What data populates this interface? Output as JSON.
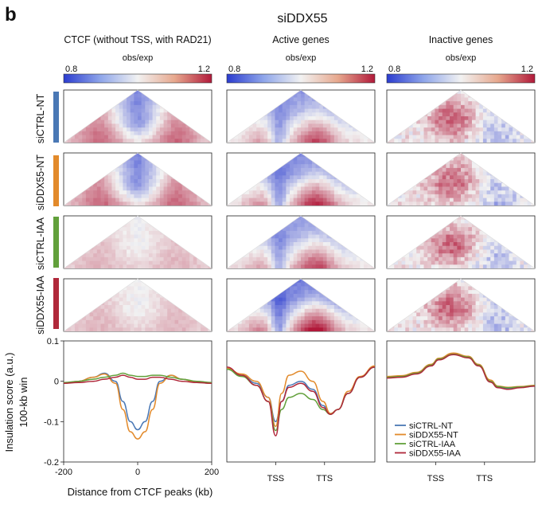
{
  "figure": {
    "panel_label": "b",
    "title": "siDDX55",
    "colorbar_label": "obs/exp",
    "colorbar_min": "0.8",
    "colorbar_max": "1.2",
    "columns": [
      {
        "title": "CTCF (without TSS, with RAD21)"
      },
      {
        "title": "Active genes"
      },
      {
        "title": "Inactive genes"
      }
    ],
    "rows": [
      {
        "label": "siCTRL-NT",
        "color": "#4a78b5"
      },
      {
        "label": "siDDX55-NT",
        "color": "#e28a2b"
      },
      {
        "label": "siCTRL-IAA",
        "color": "#62a03b"
      },
      {
        "label": "siDDX55-IAA",
        "color": "#b0283a"
      }
    ],
    "colormap": {
      "low": "#2b3ccf",
      "mid": "#f2f2f2",
      "high": "#b1193a"
    }
  },
  "chart_data": {
    "type": "line",
    "ylabel": "Insulation score (a.u.)",
    "ylabel2": "100-kb win",
    "xlabel": "Distance from CTCF peaks (kb)",
    "ylim": [
      -0.2,
      0.1
    ],
    "yticks": [
      "0.1",
      "0",
      "-0.1",
      "-0.2"
    ],
    "panels": [
      {
        "xticks": [
          "-200",
          "0",
          "200"
        ],
        "x": [
          -200,
          -160,
          -120,
          -90,
          -60,
          -40,
          -20,
          0,
          20,
          40,
          60,
          90,
          120,
          160,
          200
        ],
        "series": [
          {
            "name": "siCTRL-NT",
            "color": "#4a78b5",
            "values": [
              -0.005,
              0.0,
              0.01,
              0.02,
              0.0,
              -0.05,
              -0.1,
              -0.12,
              -0.1,
              -0.05,
              0.0,
              0.015,
              0.005,
              -0.003,
              -0.005
            ]
          },
          {
            "name": "siDDX55-NT",
            "color": "#e28a2b",
            "values": [
              -0.005,
              0.0,
              0.01,
              0.018,
              -0.005,
              -0.07,
              -0.125,
              -0.143,
              -0.125,
              -0.07,
              -0.005,
              0.015,
              0.005,
              -0.003,
              -0.005
            ]
          },
          {
            "name": "siCTRL-IAA",
            "color": "#62a03b",
            "values": [
              -0.003,
              0.0,
              0.005,
              0.01,
              0.015,
              0.02,
              0.015,
              0.012,
              0.012,
              0.015,
              0.015,
              0.01,
              0.005,
              0.0,
              -0.003
            ]
          },
          {
            "name": "siDDX55-IAA",
            "color": "#b0283a",
            "values": [
              -0.005,
              -0.003,
              0.0,
              0.005,
              0.01,
              0.015,
              0.01,
              0.005,
              0.005,
              0.01,
              0.01,
              0.005,
              0.0,
              -0.003,
              -0.005
            ]
          }
        ]
      },
      {
        "xticks": [
          "TSS",
          "TTS"
        ],
        "x": [
          0,
          0.1,
          0.2,
          0.28,
          0.33,
          0.37,
          0.42,
          0.5,
          0.58,
          0.65,
          0.7,
          0.75,
          0.82,
          0.9,
          1.0
        ],
        "series": [
          {
            "name": "siCTRL-NT",
            "color": "#4a78b5",
            "values": [
              0.03,
              0.015,
              -0.005,
              -0.04,
              -0.1,
              -0.05,
              -0.01,
              0.0,
              -0.02,
              -0.06,
              -0.08,
              -0.07,
              -0.03,
              0.01,
              0.035
            ]
          },
          {
            "name": "siDDX55-NT",
            "color": "#e28a2b",
            "values": [
              0.032,
              0.018,
              0.0,
              -0.04,
              -0.112,
              -0.03,
              0.015,
              0.025,
              0.0,
              -0.05,
              -0.08,
              -0.07,
              -0.025,
              0.012,
              0.038
            ]
          },
          {
            "name": "siCTRL-IAA",
            "color": "#62a03b",
            "values": [
              0.03,
              0.012,
              -0.01,
              -0.05,
              -0.122,
              -0.07,
              -0.04,
              -0.03,
              -0.045,
              -0.07,
              -0.082,
              -0.07,
              -0.03,
              0.01,
              0.035
            ]
          },
          {
            "name": "siDDX55-IAA",
            "color": "#b0283a",
            "values": [
              0.035,
              0.015,
              -0.01,
              -0.05,
              -0.135,
              -0.05,
              -0.015,
              -0.005,
              -0.025,
              -0.065,
              -0.082,
              -0.07,
              -0.03,
              0.01,
              0.035
            ]
          }
        ]
      },
      {
        "xticks": [
          "TSS",
          "TTS"
        ],
        "x": [
          0,
          0.1,
          0.2,
          0.3,
          0.35,
          0.45,
          0.55,
          0.62,
          0.7,
          0.75,
          0.82,
          0.9,
          1.0
        ],
        "series": [
          {
            "name": "siCTRL-NT",
            "color": "#4a78b5",
            "values": [
              0.01,
              0.012,
              0.02,
              0.04,
              0.055,
              0.068,
              0.06,
              0.04,
              0.0,
              -0.015,
              -0.018,
              -0.015,
              -0.012
            ]
          },
          {
            "name": "siDDX55-NT",
            "color": "#e28a2b",
            "values": [
              0.012,
              0.014,
              0.022,
              0.042,
              0.057,
              0.07,
              0.062,
              0.042,
              0.003,
              -0.012,
              -0.015,
              -0.013,
              -0.01
            ]
          },
          {
            "name": "siCTRL-IAA",
            "color": "#62a03b",
            "values": [
              0.01,
              0.012,
              0.02,
              0.04,
              0.055,
              0.067,
              0.06,
              0.04,
              0.0,
              -0.013,
              -0.016,
              -0.014,
              -0.011
            ]
          },
          {
            "name": "siDDX55-IAA",
            "color": "#b0283a",
            "values": [
              0.008,
              0.01,
              0.018,
              0.038,
              0.053,
              0.066,
              0.058,
              0.038,
              -0.002,
              -0.016,
              -0.02,
              -0.016,
              -0.012
            ]
          }
        ]
      }
    ],
    "legend_position": "bottom-left of third panel"
  }
}
